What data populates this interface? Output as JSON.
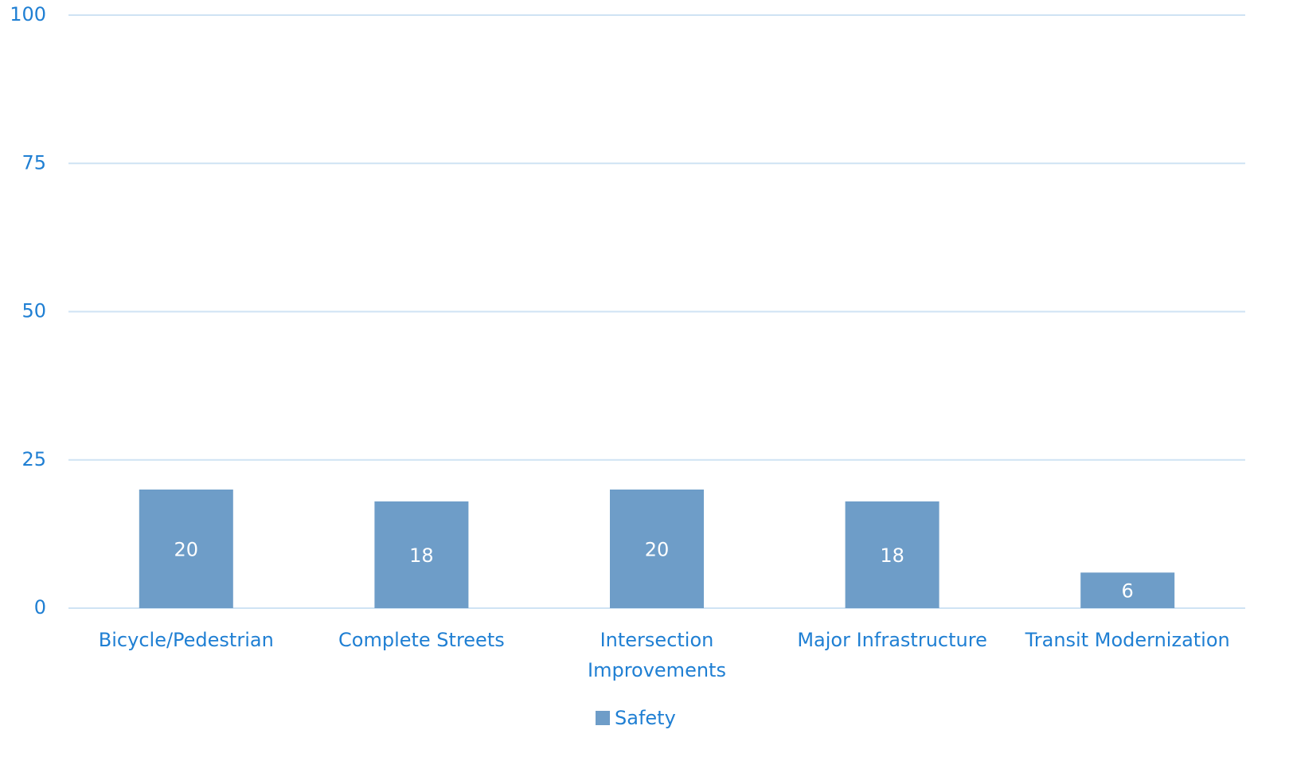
{
  "chart_data": {
    "type": "bar",
    "categories": [
      "Bicycle/Pedestrian",
      "Complete Streets",
      "Intersection Improvements",
      "Major Infrastructure",
      "Transit Modernization"
    ],
    "series": [
      {
        "name": "Safety",
        "color": "#6e9dc8",
        "values": [
          20,
          18,
          20,
          18,
          6
        ]
      }
    ],
    "ylim": [
      0,
      100
    ],
    "yticks": [
      0,
      25,
      50,
      75,
      100
    ],
    "grid": true,
    "legend": "bottom"
  }
}
